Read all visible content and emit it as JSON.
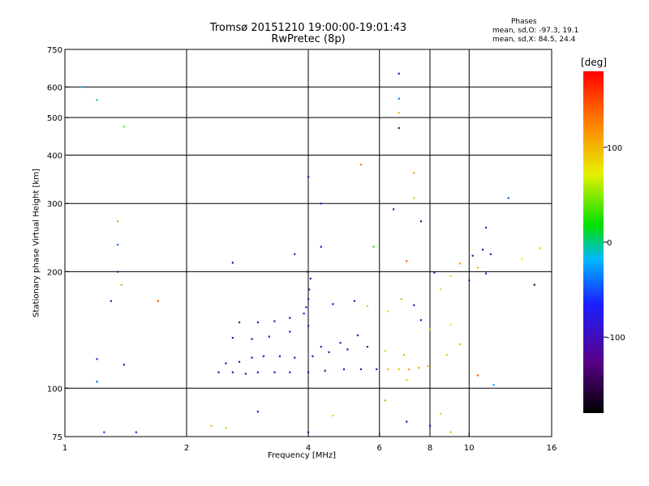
{
  "header": {
    "title_line1": "Tromsø 20151210 19:00:00-19:01:43",
    "title_line2": "RwPretec (8p)",
    "stats_heading": "Phases",
    "stats_line1": "mean, sd,O: -97.3, 19.1",
    "stats_line2": "mean, sd,X:  84.5, 24.4"
  },
  "colorbar": {
    "unit_label": "[deg]",
    "range": [
      -180,
      180
    ],
    "ticks": [
      {
        "value": 100,
        "label": "100"
      },
      {
        "value": 0,
        "label": "0"
      },
      {
        "value": -100,
        "label": "-100"
      }
    ]
  },
  "chart_data": {
    "type": "scatter",
    "title": "Tromsø 20151210 19:00:00-19:01:43",
    "subtitle": "RwPretec (8p)",
    "xlabel": "Frequency [MHz]",
    "ylabel": "Stationary phase Virtual Height [km]",
    "x_scale": "log",
    "y_scale": "log",
    "xlim": [
      1,
      16
    ],
    "ylim": [
      75,
      750
    ],
    "x_ticks": [
      {
        "value": 1,
        "label": "1"
      },
      {
        "value": 2,
        "label": "2"
      },
      {
        "value": 4,
        "label": "4"
      },
      {
        "value": 6,
        "label": "6"
      },
      {
        "value": 8,
        "label": "8"
      },
      {
        "value": 10,
        "label": "10"
      },
      {
        "value": 16,
        "label": "16"
      }
    ],
    "y_ticks": [
      {
        "value": 75,
        "label": "75"
      },
      {
        "value": 100,
        "label": "100"
      },
      {
        "value": 200,
        "label": "200"
      },
      {
        "value": 300,
        "label": "300"
      },
      {
        "value": 400,
        "label": "400"
      },
      {
        "value": 500,
        "label": "500"
      },
      {
        "value": 600,
        "label": "600"
      },
      {
        "value": 750,
        "label": "750"
      }
    ],
    "grid_x": [
      2,
      4,
      6,
      8,
      10
    ],
    "grid_y": [
      100,
      200,
      300,
      400,
      500,
      600
    ],
    "color_encoding": "phase [deg], rainbow -180 to 180",
    "points": [
      [
        2.4,
        110,
        -110
      ],
      [
        2.6,
        110,
        -110
      ],
      [
        2.8,
        109,
        -115
      ],
      [
        3.0,
        110,
        -110
      ],
      [
        3.3,
        110,
        -105
      ],
      [
        3.6,
        110,
        -110
      ],
      [
        4.0,
        110,
        -110
      ],
      [
        4.4,
        111,
        -105
      ],
      [
        4.9,
        112,
        -110
      ],
      [
        5.4,
        112,
        -110
      ],
      [
        5.9,
        112,
        -100
      ],
      [
        6.3,
        112,
        100
      ],
      [
        6.7,
        112,
        95
      ],
      [
        7.1,
        112,
        110
      ],
      [
        7.5,
        113,
        105
      ],
      [
        7.9,
        114,
        90
      ],
      [
        2.5,
        116,
        -120
      ],
      [
        2.7,
        117,
        -110
      ],
      [
        2.9,
        120,
        -115
      ],
      [
        3.1,
        121,
        -110
      ],
      [
        3.4,
        121,
        -110
      ],
      [
        3.7,
        120,
        -100
      ],
      [
        4.1,
        121,
        -110
      ],
      [
        4.5,
        124,
        -110
      ],
      [
        5.0,
        126,
        -100
      ],
      [
        5.6,
        128,
        -95
      ],
      [
        6.2,
        125,
        90
      ],
      [
        6.9,
        122,
        100
      ],
      [
        2.6,
        135,
        -110
      ],
      [
        2.9,
        134,
        -115
      ],
      [
        3.2,
        136,
        -110
      ],
      [
        3.6,
        140,
        -105
      ],
      [
        4.0,
        145,
        -100
      ],
      [
        4.3,
        128,
        -95
      ],
      [
        4.8,
        131,
        -110
      ],
      [
        5.3,
        137,
        -100
      ],
      [
        2.7,
        148,
        -115
      ],
      [
        3.0,
        148,
        -110
      ],
      [
        3.3,
        149,
        -110
      ],
      [
        3.6,
        152,
        -105
      ],
      [
        3.9,
        156,
        -100
      ],
      [
        3.95,
        162,
        -105
      ],
      [
        4.0,
        170,
        -110
      ],
      [
        4.02,
        180,
        -105
      ],
      [
        4.05,
        192,
        -100
      ],
      [
        3.98,
        200,
        -110
      ],
      [
        4.6,
        165,
        -90
      ],
      [
        5.2,
        168,
        -105
      ],
      [
        5.6,
        163,
        95
      ],
      [
        6.3,
        158,
        80
      ],
      [
        6.8,
        170,
        100
      ],
      [
        7.3,
        164,
        -110
      ],
      [
        7.6,
        150,
        -70
      ],
      [
        8.0,
        142,
        60
      ],
      [
        8.5,
        180,
        80
      ],
      [
        9.0,
        195,
        60
      ],
      [
        9.5,
        210,
        110
      ],
      [
        10.0,
        190,
        -100
      ],
      [
        10.2,
        220,
        -115
      ],
      [
        10.8,
        228,
        -105
      ],
      [
        11.3,
        222,
        -110
      ],
      [
        11.0,
        198,
        -100
      ],
      [
        10.5,
        205,
        100
      ],
      [
        8.2,
        199,
        -110
      ],
      [
        6.7,
        650,
        -110
      ],
      [
        6.7,
        560,
        -40
      ],
      [
        6.7,
        515,
        100
      ],
      [
        6.7,
        470,
        -120
      ],
      [
        1.1,
        600,
        -20
      ],
      [
        1.2,
        555,
        -10
      ],
      [
        1.4,
        474,
        40
      ],
      [
        1.35,
        270,
        40
      ],
      [
        1.35,
        235,
        -40
      ],
      [
        1.35,
        200,
        -90
      ],
      [
        1.38,
        185,
        40
      ],
      [
        1.3,
        168,
        -115
      ],
      [
        1.7,
        168,
        140
      ],
      [
        1.2,
        119,
        -60
      ],
      [
        1.4,
        115,
        -120
      ],
      [
        1.2,
        104,
        -40
      ],
      [
        4.0,
        352,
        -110
      ],
      [
        4.3,
        300,
        -80
      ],
      [
        5.4,
        378,
        120
      ],
      [
        7.3,
        360,
        110
      ],
      [
        7.3,
        310,
        60
      ],
      [
        6.5,
        290,
        -110
      ],
      [
        7.6,
        270,
        -120
      ],
      [
        12.5,
        310,
        -50
      ],
      [
        11.0,
        260,
        -60
      ],
      [
        14.5,
        185,
        -150
      ],
      [
        13.5,
        216,
        70
      ],
      [
        15.0,
        230,
        90
      ],
      [
        2.6,
        211,
        -120
      ],
      [
        3.7,
        222,
        -120
      ],
      [
        4.3,
        232,
        -90
      ],
      [
        5.8,
        232,
        30
      ],
      [
        7.0,
        213,
        140
      ],
      [
        2.3,
        80,
        100
      ],
      [
        2.5,
        79,
        60
      ],
      [
        3.0,
        87,
        -80
      ],
      [
        4.0,
        77,
        -80
      ],
      [
        4.6,
        85,
        60
      ],
      [
        6.2,
        93,
        40
      ],
      [
        7.0,
        82,
        -120
      ],
      [
        8.0,
        80,
        -110
      ],
      [
        8.5,
        86,
        60
      ],
      [
        9.0,
        77,
        50
      ],
      [
        10.5,
        108,
        140
      ],
      [
        11.5,
        102,
        -20
      ],
      [
        1.25,
        77,
        -60
      ],
      [
        1.5,
        77,
        -100
      ],
      [
        9.5,
        130,
        100
      ],
      [
        9.0,
        146,
        70
      ],
      [
        8.8,
        122,
        90
      ],
      [
        7.0,
        105,
        60
      ]
    ]
  }
}
